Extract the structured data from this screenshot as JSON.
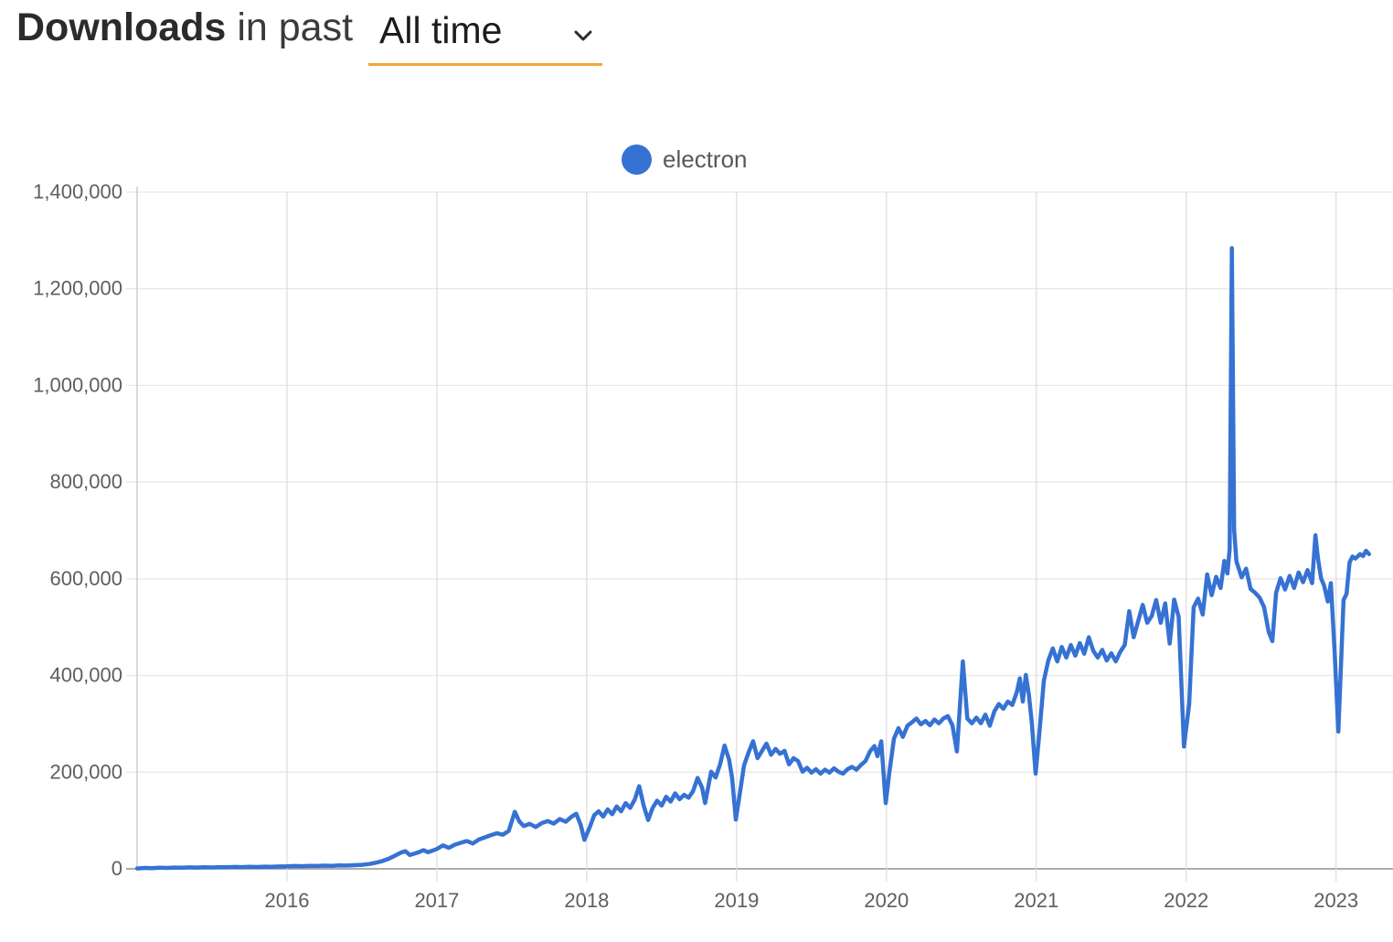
{
  "header": {
    "title_bold": "Downloads",
    "title_rest": "in past",
    "range_value": "All time",
    "accent_color": "#f0a63c"
  },
  "legend": {
    "series_label": "electron",
    "marker_color": "#3672d3"
  },
  "chart_data": {
    "type": "line",
    "title": "Downloads in past All time",
    "xlabel": "",
    "ylabel": "",
    "grid": true,
    "legend_position": "top-center",
    "xlim": [
      2015.0,
      2023.38
    ],
    "ylim": [
      0,
      1400000
    ],
    "x_ticks": [
      {
        "value": 2016,
        "label": "2016"
      },
      {
        "value": 2017,
        "label": "2017"
      },
      {
        "value": 2018,
        "label": "2018"
      },
      {
        "value": 2019,
        "label": "2019"
      },
      {
        "value": 2020,
        "label": "2020"
      },
      {
        "value": 2021,
        "label": "2021"
      },
      {
        "value": 2022,
        "label": "2022"
      },
      {
        "value": 2023,
        "label": "2023"
      }
    ],
    "y_ticks": [
      {
        "value": 0,
        "label": "0"
      },
      {
        "value": 200000,
        "label": "200,000"
      },
      {
        "value": 400000,
        "label": "400,000"
      },
      {
        "value": 600000,
        "label": "600,000"
      },
      {
        "value": 800000,
        "label": "800,000"
      },
      {
        "value": 1000000,
        "label": "1,000,000"
      },
      {
        "value": 1200000,
        "label": "1,200,000"
      },
      {
        "value": 1400000,
        "label": "1,400,000"
      }
    ],
    "series": [
      {
        "name": "electron",
        "color": "#3672d3",
        "points": [
          [
            2015.0,
            800
          ],
          [
            2015.05,
            1800
          ],
          [
            2015.1,
            1400
          ],
          [
            2015.15,
            2200
          ],
          [
            2015.2,
            1900
          ],
          [
            2015.25,
            2600
          ],
          [
            2015.3,
            2200
          ],
          [
            2015.35,
            3000
          ],
          [
            2015.4,
            2600
          ],
          [
            2015.45,
            3300
          ],
          [
            2015.5,
            2900
          ],
          [
            2015.55,
            3600
          ],
          [
            2015.6,
            3200
          ],
          [
            2015.65,
            4000
          ],
          [
            2015.7,
            3500
          ],
          [
            2015.75,
            4200
          ],
          [
            2015.8,
            3800
          ],
          [
            2015.85,
            4600
          ],
          [
            2015.9,
            4200
          ],
          [
            2015.95,
            5000
          ],
          [
            2016.0,
            5200
          ],
          [
            2016.05,
            5800
          ],
          [
            2016.1,
            5400
          ],
          [
            2016.15,
            6200
          ],
          [
            2016.2,
            5800
          ],
          [
            2016.25,
            6600
          ],
          [
            2016.3,
            6200
          ],
          [
            2016.35,
            7000
          ],
          [
            2016.4,
            6800
          ],
          [
            2016.45,
            7600
          ],
          [
            2016.5,
            8400
          ],
          [
            2016.55,
            10000
          ],
          [
            2016.6,
            13000
          ],
          [
            2016.64,
            16500
          ],
          [
            2016.68,
            21000
          ],
          [
            2016.72,
            27000
          ],
          [
            2016.76,
            33500
          ],
          [
            2016.79,
            36500
          ],
          [
            2016.82,
            28500
          ],
          [
            2016.85,
            31500
          ],
          [
            2016.88,
            34500
          ],
          [
            2016.91,
            38500
          ],
          [
            2016.94,
            34500
          ],
          [
            2016.97,
            37500
          ],
          [
            2017.0,
            41000
          ],
          [
            2017.04,
            48500
          ],
          [
            2017.08,
            43500
          ],
          [
            2017.12,
            50000
          ],
          [
            2017.16,
            54000
          ],
          [
            2017.2,
            57500
          ],
          [
            2017.24,
            52500
          ],
          [
            2017.28,
            60500
          ],
          [
            2017.32,
            65000
          ],
          [
            2017.36,
            69500
          ],
          [
            2017.4,
            73500
          ],
          [
            2017.44,
            70500
          ],
          [
            2017.48,
            78500
          ],
          [
            2017.52,
            118000
          ],
          [
            2017.55,
            98000
          ],
          [
            2017.58,
            88500
          ],
          [
            2017.62,
            93000
          ],
          [
            2017.66,
            86500
          ],
          [
            2017.7,
            94500
          ],
          [
            2017.74,
            99000
          ],
          [
            2017.78,
            93500
          ],
          [
            2017.82,
            103000
          ],
          [
            2017.86,
            97500
          ],
          [
            2017.9,
            108000
          ],
          [
            2017.93,
            114000
          ],
          [
            2017.96,
            91000
          ],
          [
            2017.985,
            60000
          ],
          [
            2018.02,
            86000
          ],
          [
            2018.05,
            111000
          ],
          [
            2018.08,
            119000
          ],
          [
            2018.11,
            108000
          ],
          [
            2018.14,
            123000
          ],
          [
            2018.17,
            113000
          ],
          [
            2018.2,
            129000
          ],
          [
            2018.23,
            119000
          ],
          [
            2018.26,
            136000
          ],
          [
            2018.29,
            126000
          ],
          [
            2018.32,
            143000
          ],
          [
            2018.35,
            171000
          ],
          [
            2018.38,
            131000
          ],
          [
            2018.41,
            101000
          ],
          [
            2018.44,
            126000
          ],
          [
            2018.47,
            141000
          ],
          [
            2018.5,
            131000
          ],
          [
            2018.53,
            149000
          ],
          [
            2018.56,
            139000
          ],
          [
            2018.59,
            156000
          ],
          [
            2018.62,
            144000
          ],
          [
            2018.65,
            153000
          ],
          [
            2018.68,
            147000
          ],
          [
            2018.71,
            161000
          ],
          [
            2018.74,
            188000
          ],
          [
            2018.77,
            168000
          ],
          [
            2018.79,
            136000
          ],
          [
            2018.83,
            201000
          ],
          [
            2018.86,
            189000
          ],
          [
            2018.89,
            216000
          ],
          [
            2018.92,
            255000
          ],
          [
            2018.95,
            226000
          ],
          [
            2018.97,
            189000
          ],
          [
            2018.995,
            102000
          ],
          [
            2019.02,
            152000
          ],
          [
            2019.05,
            214000
          ],
          [
            2019.08,
            241000
          ],
          [
            2019.11,
            264000
          ],
          [
            2019.14,
            229000
          ],
          [
            2019.17,
            244000
          ],
          [
            2019.2,
            259000
          ],
          [
            2019.23,
            236000
          ],
          [
            2019.26,
            248000
          ],
          [
            2019.29,
            238000
          ],
          [
            2019.32,
            244000
          ],
          [
            2019.35,
            216000
          ],
          [
            2019.38,
            229000
          ],
          [
            2019.41,
            223000
          ],
          [
            2019.44,
            201000
          ],
          [
            2019.47,
            209000
          ],
          [
            2019.5,
            199000
          ],
          [
            2019.53,
            206000
          ],
          [
            2019.56,
            197000
          ],
          [
            2019.59,
            205000
          ],
          [
            2019.62,
            199000
          ],
          [
            2019.65,
            208000
          ],
          [
            2019.68,
            201000
          ],
          [
            2019.71,
            197000
          ],
          [
            2019.74,
            206000
          ],
          [
            2019.77,
            211000
          ],
          [
            2019.8,
            205000
          ],
          [
            2019.83,
            215000
          ],
          [
            2019.86,
            223000
          ],
          [
            2019.89,
            243000
          ],
          [
            2019.92,
            254000
          ],
          [
            2019.94,
            233000
          ],
          [
            2019.965,
            264000
          ],
          [
            2019.995,
            136000
          ],
          [
            2020.02,
            201000
          ],
          [
            2020.05,
            269000
          ],
          [
            2020.08,
            291000
          ],
          [
            2020.11,
            273000
          ],
          [
            2020.14,
            296000
          ],
          [
            2020.17,
            303000
          ],
          [
            2020.2,
            311000
          ],
          [
            2020.23,
            299000
          ],
          [
            2020.26,
            306000
          ],
          [
            2020.29,
            297000
          ],
          [
            2020.32,
            309000
          ],
          [
            2020.35,
            301000
          ],
          [
            2020.38,
            311000
          ],
          [
            2020.41,
            316000
          ],
          [
            2020.44,
            297000
          ],
          [
            2020.47,
            243000
          ],
          [
            2020.51,
            429000
          ],
          [
            2020.54,
            311000
          ],
          [
            2020.57,
            301000
          ],
          [
            2020.6,
            313000
          ],
          [
            2020.63,
            301000
          ],
          [
            2020.66,
            319000
          ],
          [
            2020.69,
            296000
          ],
          [
            2020.72,
            326000
          ],
          [
            2020.75,
            341000
          ],
          [
            2020.78,
            331000
          ],
          [
            2020.81,
            346000
          ],
          [
            2020.84,
            339000
          ],
          [
            2020.87,
            366000
          ],
          [
            2020.89,
            394000
          ],
          [
            2020.91,
            346000
          ],
          [
            2020.93,
            401000
          ],
          [
            2020.95,
            361000
          ],
          [
            2020.97,
            301000
          ],
          [
            2020.995,
            197000
          ],
          [
            2021.02,
            281000
          ],
          [
            2021.05,
            389000
          ],
          [
            2021.08,
            431000
          ],
          [
            2021.11,
            456000
          ],
          [
            2021.14,
            429000
          ],
          [
            2021.17,
            459000
          ],
          [
            2021.2,
            437000
          ],
          [
            2021.23,
            463000
          ],
          [
            2021.26,
            441000
          ],
          [
            2021.29,
            467000
          ],
          [
            2021.32,
            445000
          ],
          [
            2021.35,
            479000
          ],
          [
            2021.38,
            451000
          ],
          [
            2021.41,
            437000
          ],
          [
            2021.44,
            453000
          ],
          [
            2021.47,
            431000
          ],
          [
            2021.5,
            446000
          ],
          [
            2021.53,
            429000
          ],
          [
            2021.56,
            449000
          ],
          [
            2021.59,
            463000
          ],
          [
            2021.62,
            533000
          ],
          [
            2021.65,
            479000
          ],
          [
            2021.68,
            513000
          ],
          [
            2021.71,
            546000
          ],
          [
            2021.74,
            509000
          ],
          [
            2021.77,
            523000
          ],
          [
            2021.8,
            556000
          ],
          [
            2021.83,
            509000
          ],
          [
            2021.86,
            549000
          ],
          [
            2021.89,
            466000
          ],
          [
            2021.92,
            557000
          ],
          [
            2021.95,
            521000
          ],
          [
            2021.985,
            253000
          ],
          [
            2022.02,
            341000
          ],
          [
            2022.05,
            541000
          ],
          [
            2022.08,
            559000
          ],
          [
            2022.11,
            526000
          ],
          [
            2022.14,
            609000
          ],
          [
            2022.17,
            566000
          ],
          [
            2022.2,
            604000
          ],
          [
            2022.23,
            581000
          ],
          [
            2022.255,
            637000
          ],
          [
            2022.275,
            611000
          ],
          [
            2022.29,
            661000
          ],
          [
            2022.305,
            1284000
          ],
          [
            2022.32,
            701000
          ],
          [
            2022.335,
            636000
          ],
          [
            2022.37,
            603000
          ],
          [
            2022.4,
            621000
          ],
          [
            2022.43,
            579000
          ],
          [
            2022.46,
            571000
          ],
          [
            2022.49,
            561000
          ],
          [
            2022.52,
            541000
          ],
          [
            2022.55,
            491000
          ],
          [
            2022.575,
            471000
          ],
          [
            2022.6,
            571000
          ],
          [
            2022.63,
            601000
          ],
          [
            2022.66,
            578000
          ],
          [
            2022.69,
            606000
          ],
          [
            2022.72,
            581000
          ],
          [
            2022.75,
            613000
          ],
          [
            2022.78,
            593000
          ],
          [
            2022.81,
            618000
          ],
          [
            2022.84,
            591000
          ],
          [
            2022.862,
            690000
          ],
          [
            2022.88,
            641000
          ],
          [
            2022.9,
            601000
          ],
          [
            2022.92,
            586000
          ],
          [
            2022.945,
            553000
          ],
          [
            2022.965,
            591000
          ],
          [
            2022.99,
            451000
          ],
          [
            2023.015,
            284000
          ],
          [
            2023.05,
            556000
          ],
          [
            2023.07,
            569000
          ],
          [
            2023.09,
            634000
          ],
          [
            2023.11,
            646000
          ],
          [
            2023.13,
            642000
          ],
          [
            2023.16,
            651000
          ],
          [
            2023.18,
            647000
          ],
          [
            2023.2,
            658000
          ],
          [
            2023.22,
            651000
          ]
        ]
      }
    ]
  }
}
